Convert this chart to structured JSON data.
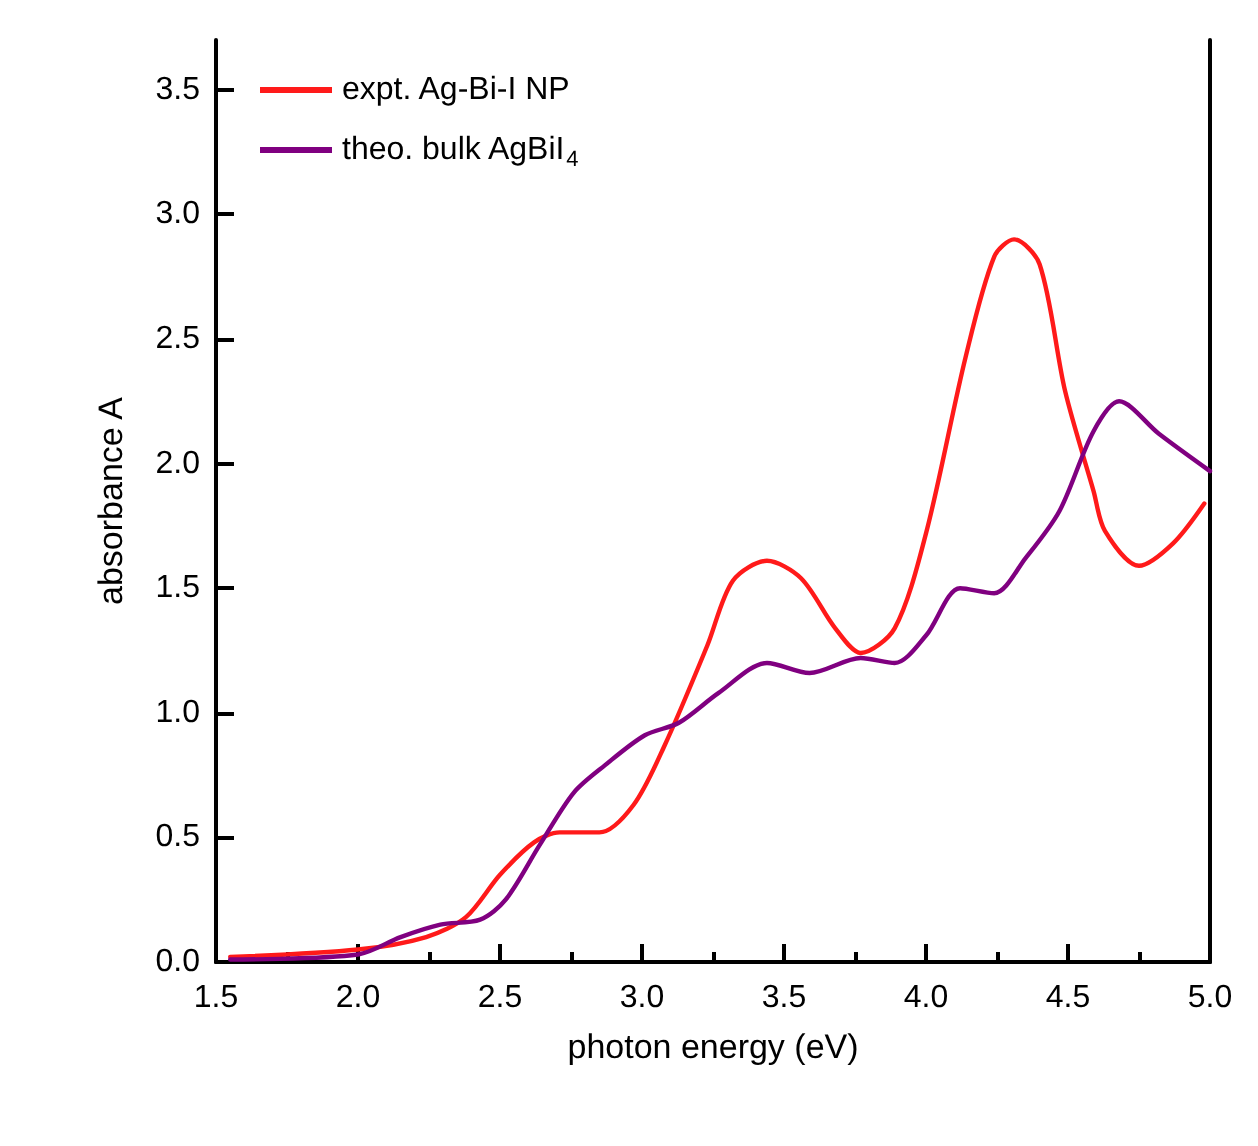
{
  "chart_data": {
    "type": "line",
    "xlabel": "photon energy (eV)",
    "ylabel": "absorbance A",
    "xlim": [
      1.5,
      5.0
    ],
    "xticks": [
      1.5,
      {
        "value": 2,
        "label": "2.0"
      },
      2.5,
      {
        "value": 3,
        "label": "3.0"
      },
      3.5,
      {
        "value": 4,
        "label": "4.0"
      },
      4.5,
      {
        "value": 5,
        "label": "5.0"
      }
    ],
    "ylim": [
      0,
      3.7
    ],
    "yticks": [
      {
        "value": 0,
        "label": "0.0"
      },
      0.5,
      {
        "value": 1,
        "label": "1.0"
      },
      1.5,
      {
        "value": 2,
        "label": "2.0"
      },
      2.5,
      {
        "value": 3,
        "label": "3.0"
      },
      3.5
    ],
    "legend": "top left",
    "grid": false,
    "marker": "none",
    "line_style": "solid",
    "series": [
      {
        "name": "expt. Ag-Bi-I NP",
        "color": "#ff1a1a",
        "x": [
          1.55,
          2.0,
          2.24,
          2.38,
          2.5,
          2.62,
          2.71,
          2.85,
          2.97,
          3.08,
          3.23,
          3.32,
          3.44,
          3.56,
          3.68,
          3.77,
          3.89,
          4.0,
          4.14,
          4.24,
          4.31,
          4.4,
          4.49,
          4.59,
          4.63,
          4.75,
          4.87,
          4.98
        ],
        "values": [
          0.02,
          0.05,
          0.1,
          0.18,
          0.35,
          0.48,
          0.52,
          0.52,
          0.63,
          0.87,
          1.27,
          1.53,
          1.61,
          1.54,
          1.34,
          1.24,
          1.34,
          1.72,
          2.43,
          2.83,
          2.9,
          2.8,
          2.29,
          1.89,
          1.73,
          1.59,
          1.68,
          1.84
        ]
      },
      {
        "name": "theo. bulk AgBiI$_{4}$",
        "color": "#800080",
        "x": [
          1.55,
          2.0,
          2.15,
          2.29,
          2.43,
          2.52,
          2.64,
          2.76,
          2.87,
          3.01,
          3.13,
          3.27,
          3.44,
          3.59,
          3.77,
          3.89,
          4.0,
          4.12,
          4.24,
          4.35,
          4.47,
          4.59,
          4.68,
          4.82,
          5.0
        ],
        "values": [
          0.01,
          0.03,
          0.1,
          0.15,
          0.17,
          0.25,
          0.47,
          0.68,
          0.79,
          0.91,
          0.96,
          1.08,
          1.2,
          1.16,
          1.22,
          1.2,
          1.31,
          1.5,
          1.48,
          1.62,
          1.81,
          2.13,
          2.25,
          2.12,
          1.97
        ]
      }
    ]
  }
}
